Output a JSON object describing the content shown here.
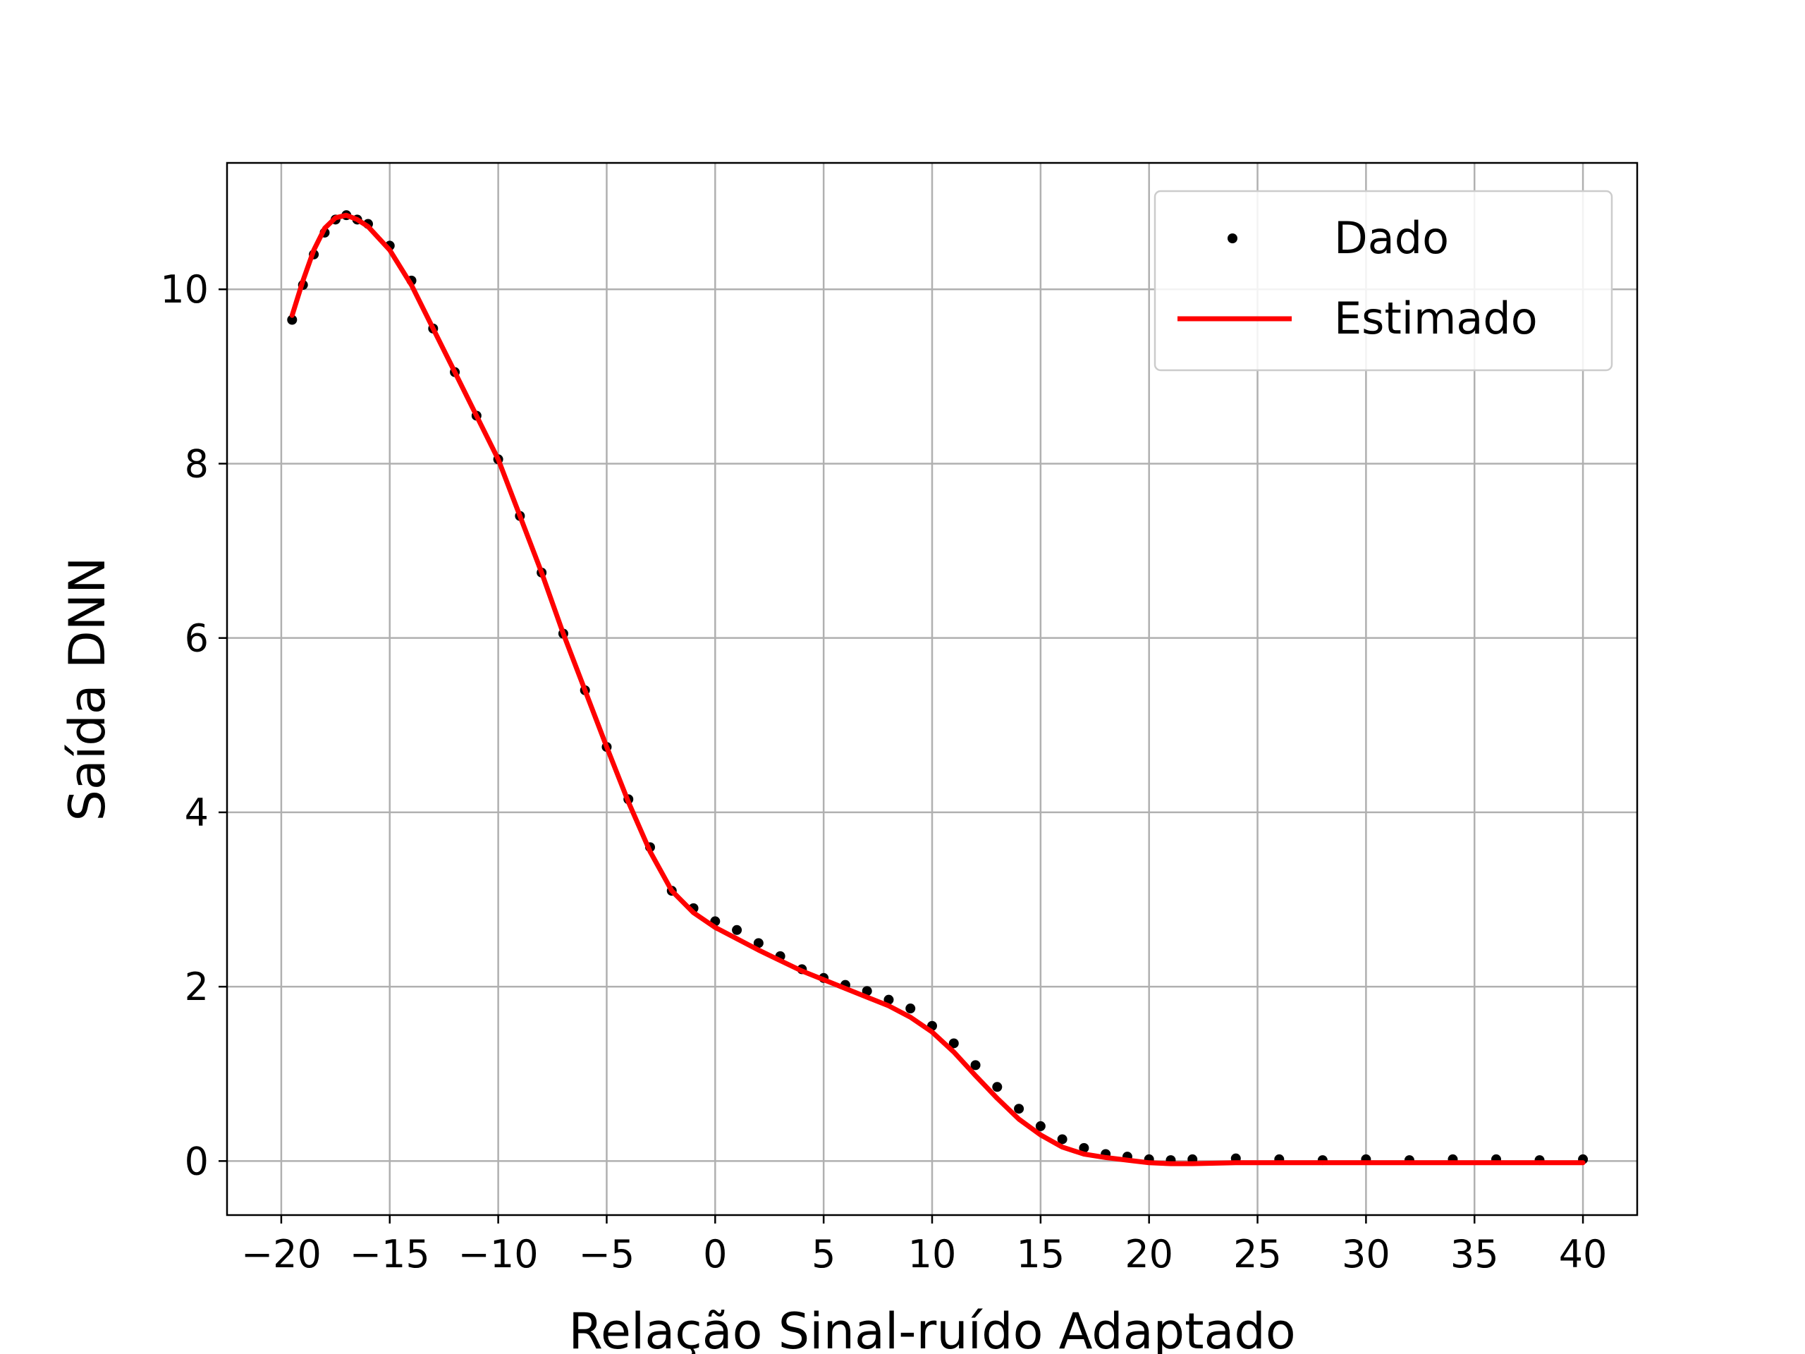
{
  "chart_data": {
    "type": "line",
    "title": "",
    "xlabel": "Relação Sinal-ruído Adaptado",
    "ylabel": "Saída DNN",
    "xlim": [
      -22.5,
      42.5
    ],
    "ylim": [
      -0.62,
      11.45
    ],
    "grid": true,
    "legend_position": "top-right",
    "x_ticks": [
      -20,
      -15,
      -10,
      -5,
      0,
      5,
      10,
      15,
      20,
      25,
      30,
      35,
      40
    ],
    "x_tick_labels": [
      "−20",
      "−15",
      "−10",
      "−5",
      "0",
      "5",
      "10",
      "15",
      "20",
      "25",
      "30",
      "35",
      "40"
    ],
    "y_ticks": [
      0,
      2,
      4,
      6,
      8,
      10
    ],
    "y_tick_labels": [
      "0",
      "2",
      "4",
      "6",
      "8",
      "10"
    ],
    "series": [
      {
        "name": "Dado",
        "style": "scatter",
        "color": "#000000",
        "x": [
          -19.5,
          -19.0,
          -18.5,
          -18.0,
          -17.5,
          -17.0,
          -16.5,
          -16.0,
          -15.0,
          -14.0,
          -13.0,
          -12.0,
          -11.0,
          -10.0,
          -9.0,
          -8.0,
          -7.0,
          -6.0,
          -5.0,
          -4.0,
          -3.0,
          -2.0,
          -1.0,
          0.0,
          1.0,
          2.0,
          3.0,
          4.0,
          5.0,
          6.0,
          7.0,
          8.0,
          9.0,
          10.0,
          11.0,
          12.0,
          13.0,
          14.0,
          15.0,
          16.0,
          17.0,
          18.0,
          19.0,
          20.0,
          21.0,
          22.0,
          24.0,
          26.0,
          28.0,
          30.0,
          32.0,
          34.0,
          36.0,
          38.0,
          40.0
        ],
        "y": [
          9.65,
          10.05,
          10.4,
          10.65,
          10.8,
          10.85,
          10.8,
          10.75,
          10.5,
          10.1,
          9.55,
          9.05,
          8.55,
          8.05,
          7.4,
          6.75,
          6.05,
          5.4,
          4.75,
          4.15,
          3.6,
          3.1,
          2.9,
          2.75,
          2.65,
          2.5,
          2.35,
          2.2,
          2.1,
          2.02,
          1.95,
          1.85,
          1.75,
          1.55,
          1.35,
          1.1,
          0.85,
          0.6,
          0.4,
          0.25,
          0.15,
          0.08,
          0.05,
          0.02,
          0.01,
          0.02,
          0.03,
          0.02,
          0.01,
          0.02,
          0.01,
          0.02,
          0.02,
          0.01,
          0.02
        ]
      },
      {
        "name": "Estimado",
        "style": "line",
        "color": "#ff0000",
        "x": [
          -19.5,
          -19.0,
          -18.5,
          -18.0,
          -17.5,
          -17.0,
          -16.5,
          -16.0,
          -15.0,
          -14.0,
          -13.0,
          -12.0,
          -11.0,
          -10.0,
          -9.0,
          -8.0,
          -7.0,
          -6.0,
          -5.0,
          -4.0,
          -3.0,
          -2.0,
          -1.0,
          0.0,
          1.0,
          2.0,
          3.0,
          4.0,
          5.0,
          6.0,
          7.0,
          8.0,
          9.0,
          10.0,
          11.0,
          12.0,
          13.0,
          14.0,
          15.0,
          16.0,
          17.0,
          18.0,
          19.0,
          20.0,
          21.0,
          22.0,
          24.0,
          26.0,
          28.0,
          30.0,
          32.0,
          34.0,
          36.0,
          38.0,
          40.0
        ],
        "y": [
          9.7,
          10.1,
          10.45,
          10.7,
          10.82,
          10.85,
          10.8,
          10.72,
          10.45,
          10.05,
          9.55,
          9.05,
          8.55,
          8.05,
          7.4,
          6.75,
          6.05,
          5.4,
          4.75,
          4.12,
          3.55,
          3.1,
          2.85,
          2.68,
          2.55,
          2.42,
          2.3,
          2.18,
          2.08,
          1.98,
          1.88,
          1.78,
          1.65,
          1.48,
          1.25,
          0.98,
          0.72,
          0.48,
          0.3,
          0.16,
          0.08,
          0.04,
          0.01,
          -0.02,
          -0.03,
          -0.03,
          -0.02,
          -0.02,
          -0.02,
          -0.02,
          -0.02,
          -0.02,
          -0.02,
          -0.02,
          -0.02
        ]
      }
    ]
  }
}
